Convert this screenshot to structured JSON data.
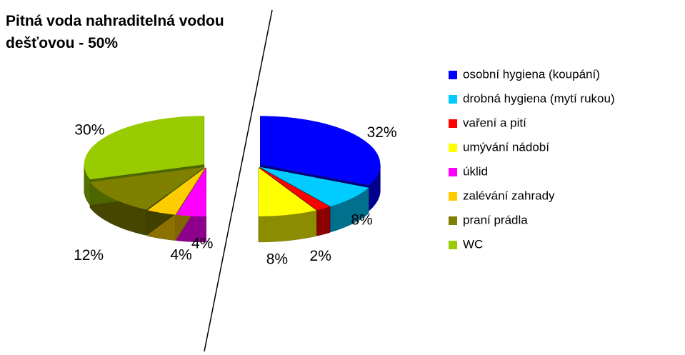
{
  "chart_data": {
    "type": "pie",
    "title": "Pitná voda nahraditelná vodou dešťovou - 50%",
    "categories": [
      "osobní hygiena (koupání)",
      "drobná hygiena (mytí rukou)",
      "vaření a pití",
      "umývání nádobí",
      "úklid",
      "zalévání zahrady",
      "praní prádla",
      "WC"
    ],
    "values": [
      32,
      8,
      2,
      8,
      4,
      4,
      12,
      30
    ],
    "value_labels": [
      "32%",
      "8%",
      "2%",
      "8%",
      "4%",
      "4%",
      "12%",
      "30%"
    ],
    "colors": [
      "#0000ff",
      "#00ccff",
      "#ff0000",
      "#ffff00",
      "#ff00ff",
      "#ffcc00",
      "#808000",
      "#99cc00"
    ],
    "legend": "right"
  }
}
